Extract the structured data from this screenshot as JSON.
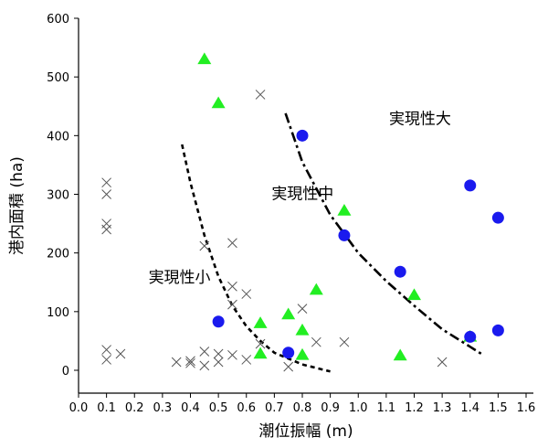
{
  "chart_data": {
    "type": "scatter",
    "xlabel": "潮位振幅 (m)",
    "ylabel": "港内面積 (ha)",
    "xlim": [
      0.0,
      1.6
    ],
    "ylim": [
      0,
      600
    ],
    "xticks": [
      "0.0",
      "0.1",
      "0.2",
      "0.3",
      "0.4",
      "0.5",
      "0.6",
      "0.7",
      "0.8",
      "0.9",
      "1.0",
      "1.1",
      "1.2",
      "1.3",
      "1.4",
      "1.5",
      "1.6"
    ],
    "yticks": [
      "0",
      "100",
      "200",
      "300",
      "400",
      "500",
      "600"
    ],
    "grid": false,
    "colors": {
      "triangle": "#22ee22",
      "circle": "#1a1aee",
      "cross": "#555555"
    },
    "series": [
      {
        "marker": "cross",
        "points": [
          [
            0.1,
            320
          ],
          [
            0.1,
            300
          ],
          [
            0.1,
            250
          ],
          [
            0.1,
            240
          ],
          [
            0.1,
            35
          ],
          [
            0.1,
            18
          ],
          [
            0.15,
            28
          ],
          [
            0.35,
            14
          ],
          [
            0.4,
            16
          ],
          [
            0.4,
            12
          ],
          [
            0.45,
            212
          ],
          [
            0.45,
            32
          ],
          [
            0.45,
            8
          ],
          [
            0.5,
            28
          ],
          [
            0.5,
            14
          ],
          [
            0.55,
            217
          ],
          [
            0.55,
            143
          ],
          [
            0.55,
            112
          ],
          [
            0.55,
            26
          ],
          [
            0.6,
            130
          ],
          [
            0.6,
            18
          ],
          [
            0.65,
            470
          ],
          [
            0.65,
            45
          ],
          [
            0.75,
            6
          ],
          [
            0.8,
            105
          ],
          [
            0.85,
            48
          ],
          [
            0.95,
            48
          ],
          [
            1.3,
            14
          ]
        ]
      },
      {
        "marker": "triangle",
        "points": [
          [
            0.45,
            530
          ],
          [
            0.5,
            455
          ],
          [
            0.65,
            80
          ],
          [
            0.65,
            28
          ],
          [
            0.75,
            95
          ],
          [
            0.8,
            68
          ],
          [
            0.8,
            26
          ],
          [
            0.85,
            137
          ],
          [
            0.95,
            272
          ],
          [
            1.15,
            25
          ],
          [
            1.2,
            128
          ],
          [
            1.4,
            57
          ]
        ]
      },
      {
        "marker": "circle",
        "points": [
          [
            0.5,
            83
          ],
          [
            0.75,
            30
          ],
          [
            0.8,
            400
          ],
          [
            0.95,
            230
          ],
          [
            1.15,
            168
          ],
          [
            1.4,
            315
          ],
          [
            1.4,
            57
          ],
          [
            1.5,
            260
          ],
          [
            1.5,
            68
          ]
        ]
      }
    ],
    "boundaries": [
      {
        "style": "dashed",
        "points": [
          [
            0.37,
            385
          ],
          [
            0.4,
            320
          ],
          [
            0.45,
            230
          ],
          [
            0.5,
            160
          ],
          [
            0.55,
            110
          ],
          [
            0.6,
            75
          ],
          [
            0.65,
            50
          ],
          [
            0.7,
            30
          ],
          [
            0.8,
            10
          ],
          [
            0.9,
            -2
          ]
        ]
      },
      {
        "style": "dashdot",
        "points": [
          [
            0.74,
            438
          ],
          [
            0.8,
            355
          ],
          [
            0.9,
            265
          ],
          [
            1.0,
            200
          ],
          [
            1.1,
            152
          ],
          [
            1.2,
            110
          ],
          [
            1.3,
            70
          ],
          [
            1.4,
            40
          ],
          [
            1.44,
            28
          ]
        ]
      }
    ],
    "annotations": [
      {
        "text": "実現性大",
        "x": 1.11,
        "y": 420
      },
      {
        "text": "実現性中",
        "x": 0.69,
        "y": 292
      },
      {
        "text": "実現性小",
        "x": 0.25,
        "y": 150
      }
    ]
  }
}
